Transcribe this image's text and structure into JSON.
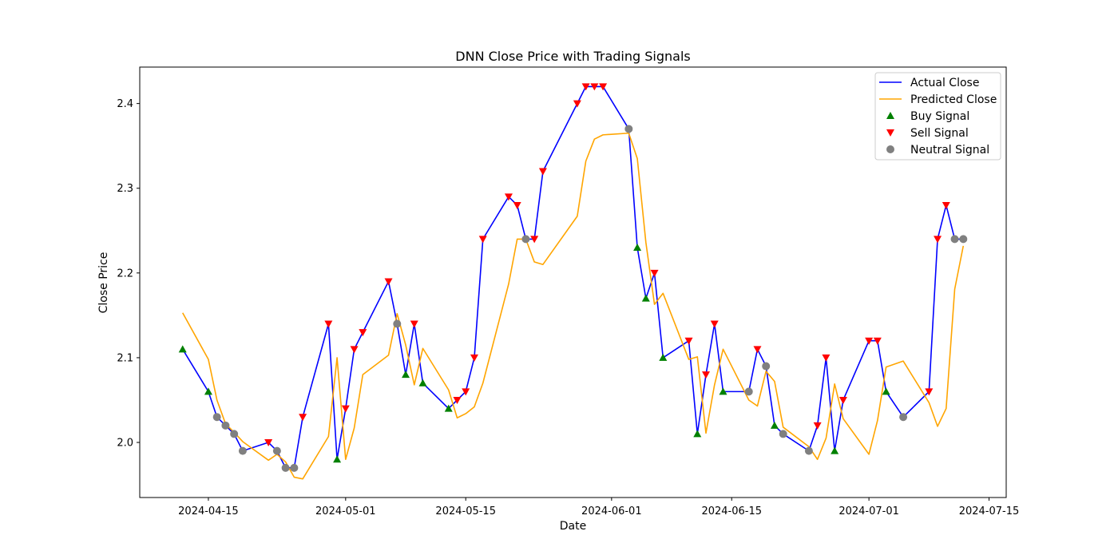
{
  "chart_data": {
    "type": "line",
    "title": "DNN Close Price with Trading Signals",
    "xlabel": "Date",
    "ylabel": "Close Price",
    "xlim": [
      "2024-04-07",
      "2024-07-17"
    ],
    "ylim": [
      1.935,
      2.443
    ],
    "x_ticks": [
      "2024-04-15",
      "2024-05-01",
      "2024-05-15",
      "2024-06-01",
      "2024-06-15",
      "2024-07-01",
      "2024-07-15"
    ],
    "y_ticks": [
      2.0,
      2.1,
      2.2,
      2.3,
      2.4
    ],
    "grid": false,
    "legend_position": "top-right",
    "x": [
      "2024-04-12",
      "2024-04-15",
      "2024-04-16",
      "2024-04-17",
      "2024-04-18",
      "2024-04-19",
      "2024-04-22",
      "2024-04-23",
      "2024-04-24",
      "2024-04-25",
      "2024-04-26",
      "2024-04-29",
      "2024-04-30",
      "2024-05-01",
      "2024-05-02",
      "2024-05-03",
      "2024-05-06",
      "2024-05-07",
      "2024-05-08",
      "2024-05-09",
      "2024-05-10",
      "2024-05-13",
      "2024-05-14",
      "2024-05-15",
      "2024-05-16",
      "2024-05-17",
      "2024-05-20",
      "2024-05-21",
      "2024-05-22",
      "2024-05-23",
      "2024-05-24",
      "2024-05-28",
      "2024-05-29",
      "2024-05-30",
      "2024-05-31",
      "2024-06-03",
      "2024-06-04",
      "2024-06-05",
      "2024-06-06",
      "2024-06-07",
      "2024-06-10",
      "2024-06-11",
      "2024-06-12",
      "2024-06-13",
      "2024-06-14",
      "2024-06-17",
      "2024-06-18",
      "2024-06-19",
      "2024-06-20",
      "2024-06-21",
      "2024-06-24",
      "2024-06-25",
      "2024-06-26",
      "2024-06-27",
      "2024-06-28",
      "2024-07-01",
      "2024-07-02",
      "2024-07-03",
      "2024-07-05",
      "2024-07-08",
      "2024-07-09",
      "2024-07-10",
      "2024-07-11",
      "2024-07-12"
    ],
    "series": [
      {
        "name": "Actual Close",
        "color": "#0000ff",
        "values": [
          2.11,
          2.06,
          2.03,
          2.02,
          2.01,
          1.99,
          2.0,
          1.99,
          1.97,
          1.97,
          2.03,
          2.14,
          1.98,
          2.04,
          2.11,
          2.13,
          2.19,
          2.14,
          2.08,
          2.14,
          2.07,
          2.04,
          2.05,
          2.06,
          2.1,
          2.24,
          2.29,
          2.28,
          2.24,
          2.24,
          2.32,
          2.4,
          2.42,
          2.42,
          2.42,
          2.37,
          2.23,
          2.17,
          2.2,
          2.1,
          2.12,
          2.01,
          2.08,
          2.14,
          2.06,
          2.06,
          2.11,
          2.09,
          2.02,
          2.01,
          1.99,
          2.02,
          2.1,
          1.99,
          2.05,
          2.12,
          2.12,
          2.06,
          2.03,
          2.06,
          2.24,
          2.28,
          2.24,
          2.24
        ]
      },
      {
        "name": "Predicted Close",
        "color": "#ffa500",
        "values": [
          2.153,
          2.098,
          2.05,
          2.022,
          2.012,
          2.001,
          1.979,
          1.986,
          1.977,
          1.959,
          1.957,
          2.007,
          2.1,
          1.98,
          2.017,
          2.08,
          2.103,
          2.152,
          2.115,
          2.068,
          2.111,
          2.062,
          2.029,
          2.034,
          2.042,
          2.07,
          2.187,
          2.24,
          2.24,
          2.213,
          2.21,
          2.267,
          2.332,
          2.358,
          2.363,
          2.365,
          2.335,
          2.236,
          2.163,
          2.176,
          2.098,
          2.101,
          2.011,
          2.068,
          2.11,
          2.05,
          2.043,
          2.084,
          2.072,
          2.018,
          1.995,
          1.98,
          2.005,
          2.069,
          2.028,
          1.986,
          2.026,
          2.089,
          2.096,
          2.047,
          2.019,
          2.04,
          2.181,
          2.232
        ]
      }
    ],
    "signal_series": [
      {
        "name": "Buy Signal",
        "color": "#008000",
        "marker": "triangle-up"
      },
      {
        "name": "Sell Signal",
        "color": "#ff0000",
        "marker": "triangle-down"
      },
      {
        "name": "Neutral Signal",
        "color": "#808080",
        "marker": "circle"
      }
    ],
    "signals": [
      "buy",
      "buy",
      "neutral",
      "neutral",
      "neutral",
      "neutral",
      "sell",
      "neutral",
      "neutral",
      "neutral",
      "sell",
      "sell",
      "buy",
      "sell",
      "sell",
      "sell",
      "sell",
      "neutral",
      "buy",
      "sell",
      "buy",
      "buy",
      "sell",
      "sell",
      "sell",
      "sell",
      "sell",
      "sell",
      "neutral",
      "sell",
      "sell",
      "sell",
      "sell",
      "sell",
      "sell",
      "neutral",
      "buy",
      "buy",
      "sell",
      "buy",
      "sell",
      "buy",
      "sell",
      "sell",
      "buy",
      "neutral",
      "sell",
      "neutral",
      "buy",
      "neutral",
      "neutral",
      "sell",
      "sell",
      "buy",
      "sell",
      "sell",
      "sell",
      "buy",
      "neutral",
      "sell",
      "sell",
      "sell",
      "neutral",
      "neutral"
    ]
  }
}
